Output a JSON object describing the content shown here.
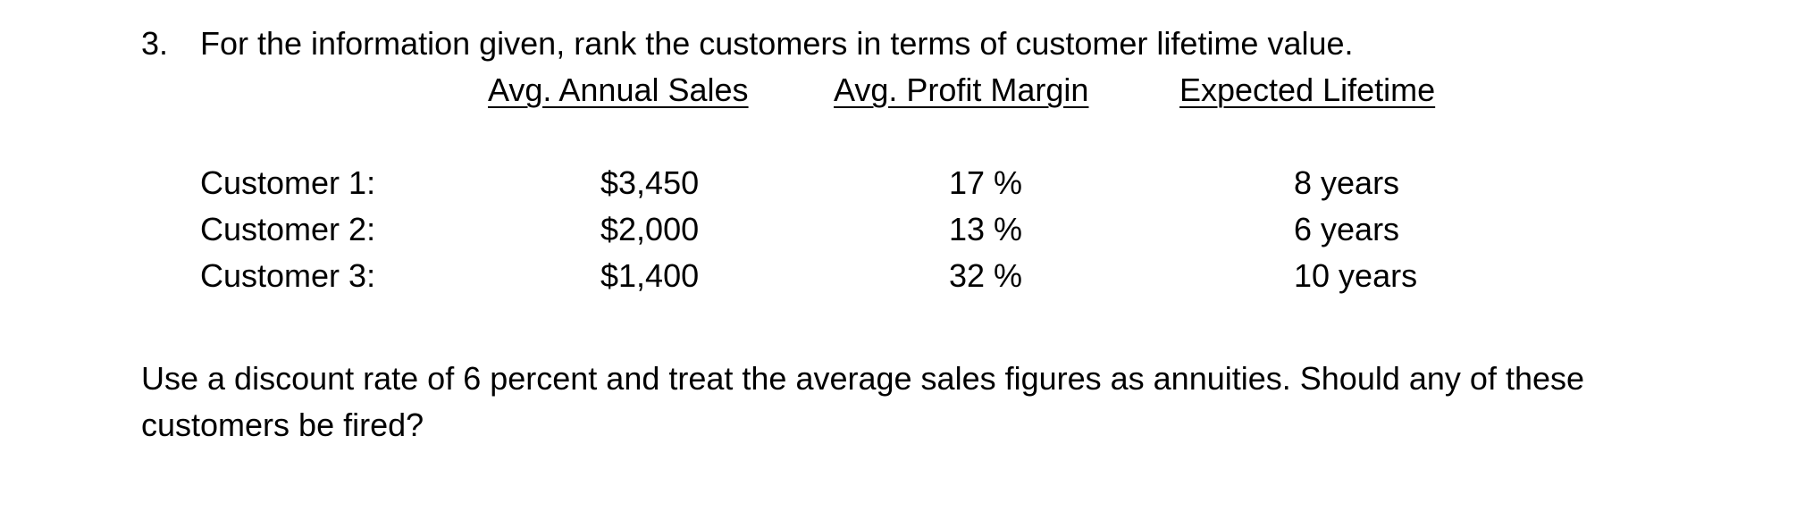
{
  "question": {
    "number": "3.",
    "prompt": "For the information given, rank the customers in terms of customer lifetime value."
  },
  "table": {
    "headers": {
      "sales": "Avg. Annual Sales",
      "margin": "Avg. Profit Margin",
      "lifetime": "Expected Lifetime"
    },
    "rows": [
      {
        "name": "Customer 1:",
        "sales": "$3,450",
        "margin": "17 %",
        "lifetime": "8 years"
      },
      {
        "name": "Customer 2:",
        "sales": "$2,000",
        "margin": "13 %",
        "lifetime": "6 years"
      },
      {
        "name": "Customer 3:",
        "sales": "$1,400",
        "margin": "32 %",
        "lifetime": "10 years"
      }
    ]
  },
  "footer": {
    "instructions": "Use a discount rate of 6 percent and treat the average sales figures as annuities. Should any of these customers be fired?"
  }
}
